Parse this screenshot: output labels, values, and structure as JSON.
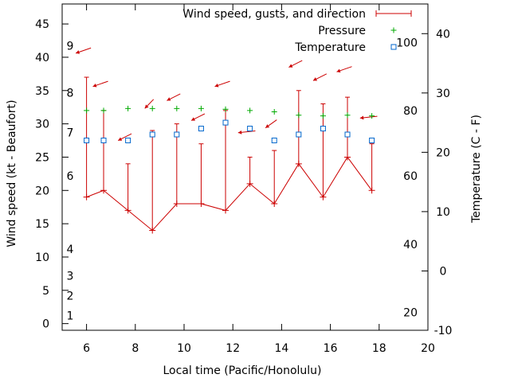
{
  "chart_data": {
    "type": "line",
    "xlabel": "Local time (Pacific/Honolulu)",
    "ylabel": "Wind speed (kt - Beaufort)",
    "y2label": "Temperature (C - F)",
    "xlim": [
      5,
      20
    ],
    "ylim": [
      -1,
      48
    ],
    "y2lim": [
      -10,
      45
    ],
    "grid": false,
    "legend_position": "top-right",
    "x_ticks": [
      6,
      8,
      10,
      12,
      14,
      16,
      18,
      20
    ],
    "y_ticks": [
      0,
      5,
      10,
      15,
      20,
      25,
      30,
      35,
      40,
      45
    ],
    "y2_ticks": [
      -10,
      0,
      10,
      20,
      30,
      40
    ],
    "beaufort_labels": [
      {
        "label": "1",
        "y": 1.2
      },
      {
        "label": "2",
        "y": 4.2
      },
      {
        "label": "3",
        "y": 7.2
      },
      {
        "label": "4",
        "y": 11.2
      },
      {
        "label": "6",
        "y": 22.2
      },
      {
        "label": "7",
        "y": 28.7
      },
      {
        "label": "8",
        "y": 34.7
      },
      {
        "label": "9",
        "y": 41.7
      }
    ],
    "fahrenheit_labels": [
      {
        "label": "20",
        "y": -7
      },
      {
        "label": "40",
        "y": 4.5
      },
      {
        "label": "60",
        "y": 16
      },
      {
        "label": "80",
        "y": 27
      },
      {
        "label": "100",
        "y": 38.5
      }
    ],
    "series": [
      {
        "name": "Wind speed, gusts, and direction",
        "color": "#cc0000",
        "x": [
          6,
          6.7,
          7.7,
          8.7,
          9.7,
          10.7,
          11.7,
          12.7,
          13.7,
          14.7,
          15.7,
          16.7,
          17.7
        ],
        "values": [
          19,
          20,
          17,
          14,
          18,
          18,
          17,
          21,
          18,
          24,
          19,
          25,
          20
        ],
        "gusts": [
          37,
          32,
          24,
          29,
          30,
          27,
          32,
          25,
          26,
          35,
          33,
          34,
          27
        ],
        "direction_deg": [
          60,
          60,
          50,
          30,
          50,
          50,
          60,
          80,
          40,
          50,
          50,
          60,
          80
        ],
        "direction_label_y": [
          41,
          36,
          28,
          33,
          34,
          31,
          36,
          28.8,
          30,
          39,
          37,
          38.2,
          31
        ]
      },
      {
        "name": "Pressure",
        "color": "#00aa00",
        "x": [
          6,
          6.7,
          7.7,
          8.7,
          9.7,
          10.7,
          11.7,
          12.7,
          13.7,
          14.7,
          15.7,
          16.7,
          17.7
        ],
        "values": [
          32,
          32,
          32.3,
          32.3,
          32.3,
          32.3,
          32.2,
          32,
          31.8,
          31.3,
          31.2,
          31.3,
          31.2
        ]
      },
      {
        "name": "Temperature",
        "color": "#0066cc",
        "axis": "y2",
        "x": [
          6,
          6.7,
          7.7,
          8.7,
          9.7,
          10.7,
          11.7,
          12.7,
          13.7,
          14.7,
          15.7,
          16.7,
          17.7
        ],
        "values": [
          22,
          22,
          22,
          23,
          23,
          24,
          25,
          24,
          22,
          23,
          24,
          23,
          22
        ]
      }
    ]
  }
}
